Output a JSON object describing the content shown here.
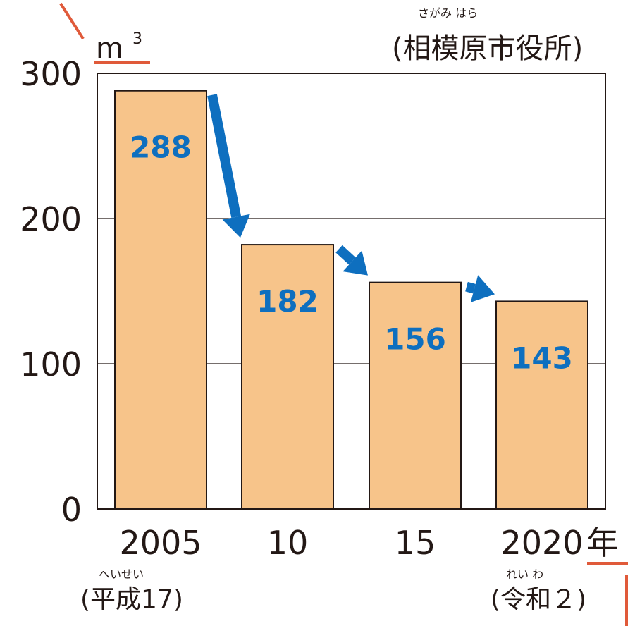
{
  "chart_data": {
    "type": "bar",
    "unit": "m",
    "unit_sup": "3",
    "source_ruby": "さがみ はら",
    "source": "(相模原市役所)",
    "categories": [
      "2005",
      "10",
      "15",
      "2020"
    ],
    "year_suffix": "年",
    "values": [
      288,
      182,
      156,
      143
    ],
    "value_labels": [
      "288",
      "182",
      "156",
      "143"
    ],
    "yticks": [
      "300",
      "200",
      "100",
      "0"
    ],
    "ylim": [
      0,
      300
    ],
    "grid": true,
    "era_labels": {
      "first_ruby": "へいせい",
      "first": "(平成17)",
      "last_ruby": "れい わ",
      "last": "(令和２)"
    },
    "colors": {
      "bar": "#f7c48a",
      "bar_stroke": "#231815",
      "arrow": "#0e6fbf",
      "value": "#0e6fbf",
      "accent": "#e05a3a"
    }
  }
}
